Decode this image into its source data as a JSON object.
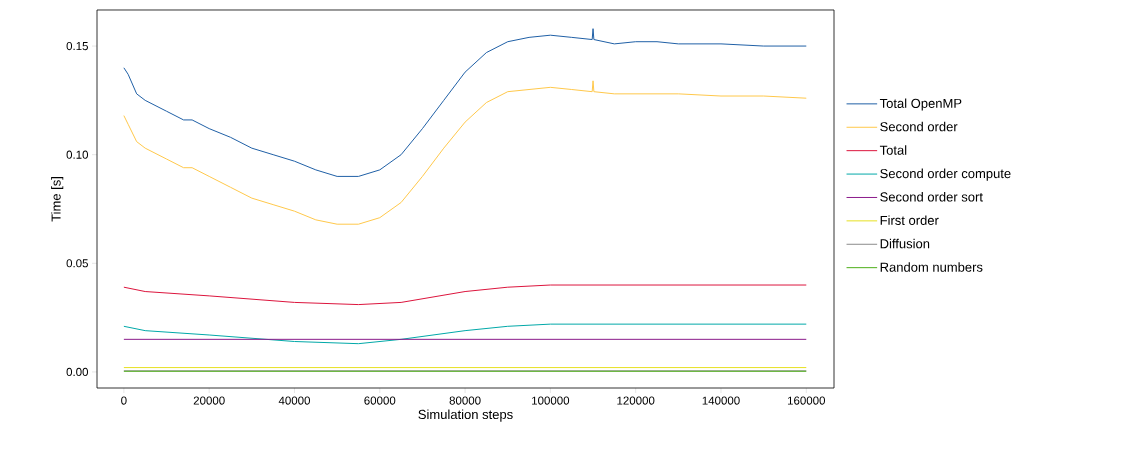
{
  "chart_data": {
    "type": "line",
    "xlabel": "Simulation steps",
    "ylabel": "Time [s]",
    "xlim": [
      -6300,
      166500
    ],
    "ylim": [
      -0.0074,
      0.1666
    ],
    "xticks": [
      0,
      20000,
      40000,
      60000,
      80000,
      100000,
      120000,
      140000,
      160000
    ],
    "yticks": [
      {
        "value": 0,
        "label": "0.00"
      },
      {
        "value": 0.05,
        "label": "0.05"
      },
      {
        "value": 0.1,
        "label": "0.10"
      },
      {
        "value": 0.15,
        "label": "0.15"
      }
    ],
    "grid": false,
    "legend": "right",
    "line_style": "solid",
    "marker": "none",
    "series": [
      {
        "name": "Total OpenMP",
        "color": "#1f5fa6",
        "x": [
          0,
          1000,
          3000,
          5000,
          10000,
          14000,
          16000,
          20000,
          25000,
          30000,
          35000,
          40000,
          45000,
          50000,
          55000,
          60000,
          65000,
          70000,
          75000,
          80000,
          85000,
          90000,
          95000,
          100000,
          105000,
          109800,
          110000,
          110200,
          115000,
          120000,
          125000,
          130000,
          140000,
          150000,
          160000
        ],
        "values": [
          0.14,
          0.137,
          0.128,
          0.125,
          0.12,
          0.116,
          0.116,
          0.112,
          0.108,
          0.103,
          0.1,
          0.097,
          0.093,
          0.09,
          0.09,
          0.093,
          0.1,
          0.112,
          0.125,
          0.138,
          0.147,
          0.152,
          0.154,
          0.155,
          0.154,
          0.153,
          0.158,
          0.153,
          0.151,
          0.152,
          0.152,
          0.151,
          0.151,
          0.15,
          0.15
        ]
      },
      {
        "name": "Second order",
        "color": "#ffc84a",
        "x": [
          0,
          1000,
          3000,
          5000,
          10000,
          14000,
          16000,
          20000,
          25000,
          30000,
          35000,
          40000,
          45000,
          50000,
          55000,
          60000,
          65000,
          70000,
          75000,
          80000,
          85000,
          90000,
          95000,
          100000,
          105000,
          109800,
          110000,
          110200,
          115000,
          120000,
          125000,
          130000,
          140000,
          150000,
          160000
        ],
        "values": [
          0.118,
          0.114,
          0.106,
          0.103,
          0.098,
          0.094,
          0.094,
          0.09,
          0.085,
          0.08,
          0.077,
          0.074,
          0.07,
          0.068,
          0.068,
          0.071,
          0.078,
          0.09,
          0.103,
          0.115,
          0.124,
          0.129,
          0.13,
          0.131,
          0.13,
          0.129,
          0.134,
          0.129,
          0.128,
          0.128,
          0.128,
          0.128,
          0.127,
          0.127,
          0.126
        ]
      },
      {
        "name": "Total",
        "color": "#dc143c",
        "x": [
          0,
          5000,
          20000,
          40000,
          55000,
          65000,
          80000,
          90000,
          100000,
          120000,
          140000,
          160000
        ],
        "values": [
          0.039,
          0.037,
          0.035,
          0.032,
          0.031,
          0.032,
          0.037,
          0.039,
          0.04,
          0.04,
          0.04,
          0.04
        ]
      },
      {
        "name": "Second order compute",
        "color": "#00a8a8",
        "x": [
          0,
          5000,
          20000,
          40000,
          55000,
          65000,
          80000,
          90000,
          100000,
          120000,
          140000,
          160000
        ],
        "values": [
          0.021,
          0.019,
          0.017,
          0.014,
          0.013,
          0.015,
          0.019,
          0.021,
          0.022,
          0.022,
          0.022,
          0.022
        ]
      },
      {
        "name": "Second order sort",
        "color": "#8b1a8b",
        "x": [
          0,
          160000
        ],
        "values": [
          0.015,
          0.015
        ]
      },
      {
        "name": "First order",
        "color": "#e6e020",
        "x": [
          0,
          160000
        ],
        "values": [
          0.002,
          0.002
        ]
      },
      {
        "name": "Diffusion",
        "color": "#8c8c8c",
        "x": [
          0,
          160000
        ],
        "values": [
          0.0005,
          0.0005
        ]
      },
      {
        "name": "Random numbers",
        "color": "#4daf18",
        "x": [
          0,
          160000
        ],
        "values": [
          0.0003,
          0.0003
        ]
      }
    ]
  }
}
